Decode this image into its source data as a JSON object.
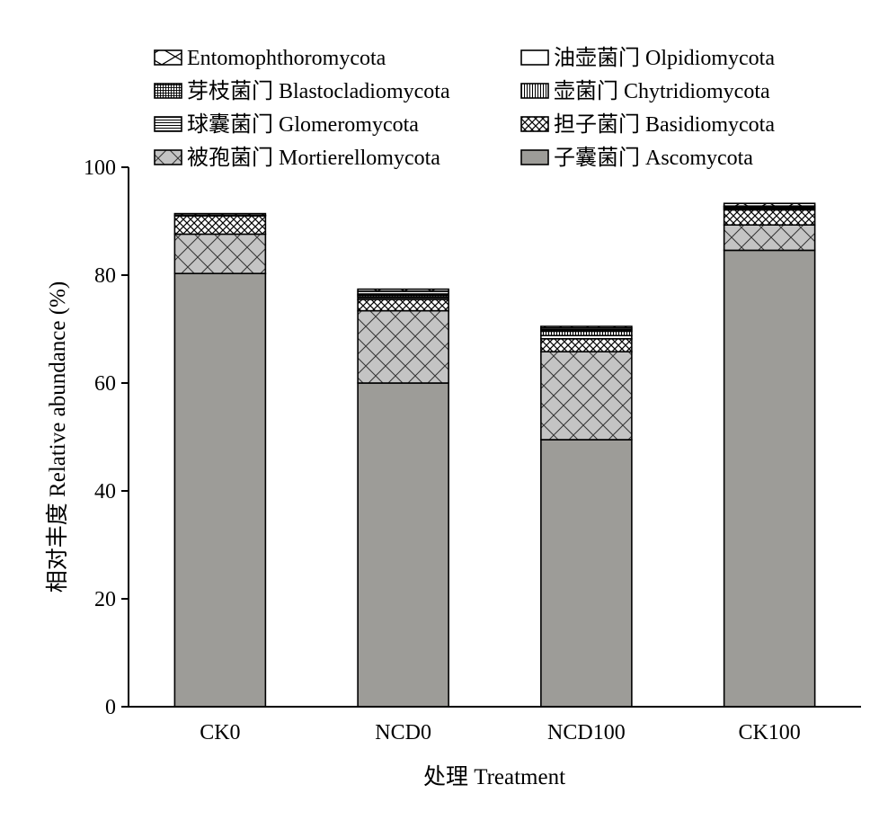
{
  "chart_data": {
    "type": "bar",
    "stacked": true,
    "categories": [
      "CK0",
      "NCD0",
      "NCD100",
      "CK100"
    ],
    "xlabel": "处理 Treatment",
    "ylabel": "相对丰度 Relative abundance (%)",
    "ylim": [
      0,
      100
    ],
    "yticks": [
      0,
      20,
      40,
      60,
      80,
      100
    ],
    "grid": false,
    "legend_position": "top",
    "series": [
      {
        "name": "子囊菌门 Ascomycota",
        "pattern": "solid",
        "color": "#9d9c98",
        "values": [
          80.3,
          60.0,
          49.5,
          84.6
        ]
      },
      {
        "name": "被孢菌门 Mortierellomycota",
        "pattern": "crosshatch",
        "color": "#c4c4c4",
        "values": [
          7.3,
          13.4,
          16.3,
          4.7
        ]
      },
      {
        "name": "担子菌门 Basidiomycota",
        "pattern": "dense-crosshatch",
        "values": [
          3.4,
          2.1,
          2.4,
          2.8
        ]
      },
      {
        "name": "球囊菌门 Glomeromycota",
        "pattern": "horizontal",
        "values": [
          0.0,
          0.5,
          0.6,
          0.2
        ]
      },
      {
        "name": "壶菌门 Chytridiomycota",
        "pattern": "vertical",
        "values": [
          0.0,
          0.3,
          0.8,
          0.2
        ]
      },
      {
        "name": "芽枝菌门 Blastocladiomycota",
        "pattern": "grid",
        "values": [
          0.0,
          0.2,
          0.3,
          0.2
        ]
      },
      {
        "name": "油壶菌门 Olpidiomycota",
        "pattern": "white",
        "values": [
          0.1,
          0.5,
          0.3,
          0.1
        ]
      },
      {
        "name": "Entomophthoromycota",
        "pattern": "x",
        "values": [
          0.3,
          0.4,
          0.3,
          0.5
        ]
      }
    ]
  }
}
